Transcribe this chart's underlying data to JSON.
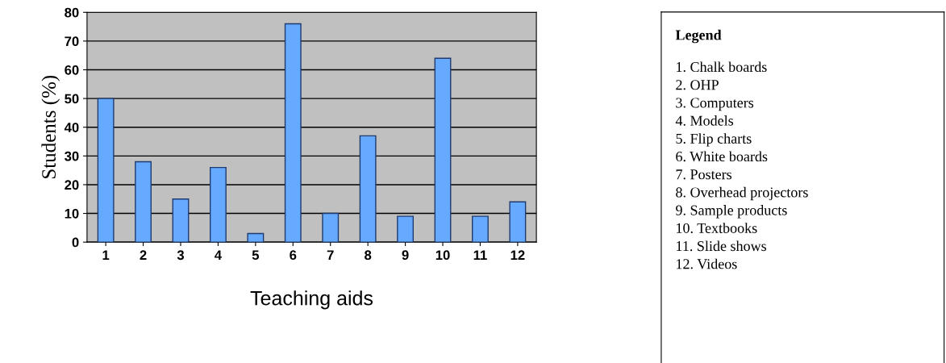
{
  "chart_data": [
    {
      "type": "bar",
      "xlabel": "Teaching aids",
      "ylabel": "Students (%)",
      "categories": [
        "1",
        "2",
        "3",
        "4",
        "5",
        "6",
        "7",
        "8",
        "9",
        "10",
        "11",
        "12"
      ],
      "values": [
        50,
        28,
        15,
        26,
        3,
        76,
        10,
        37,
        9,
        64,
        9,
        14
      ],
      "color": "#66aaff",
      "ylim": [
        0,
        80
      ],
      "yticks": [
        0,
        10,
        20,
        30,
        40,
        50,
        60,
        70,
        80
      ],
      "grid": "y",
      "legend": false
    },
    {
      "type": "other",
      "title": "Legend",
      "annotations": [
        "1. Chalk boards",
        "2. OHP",
        "3. Computers",
        "4. Models",
        "5. Flip charts",
        "6. White boards",
        "7. Posters",
        "8. Overhead projectors",
        "9. Sample products",
        "10. Textbooks",
        "11. Slide shows",
        "12. Videos"
      ]
    }
  ]
}
